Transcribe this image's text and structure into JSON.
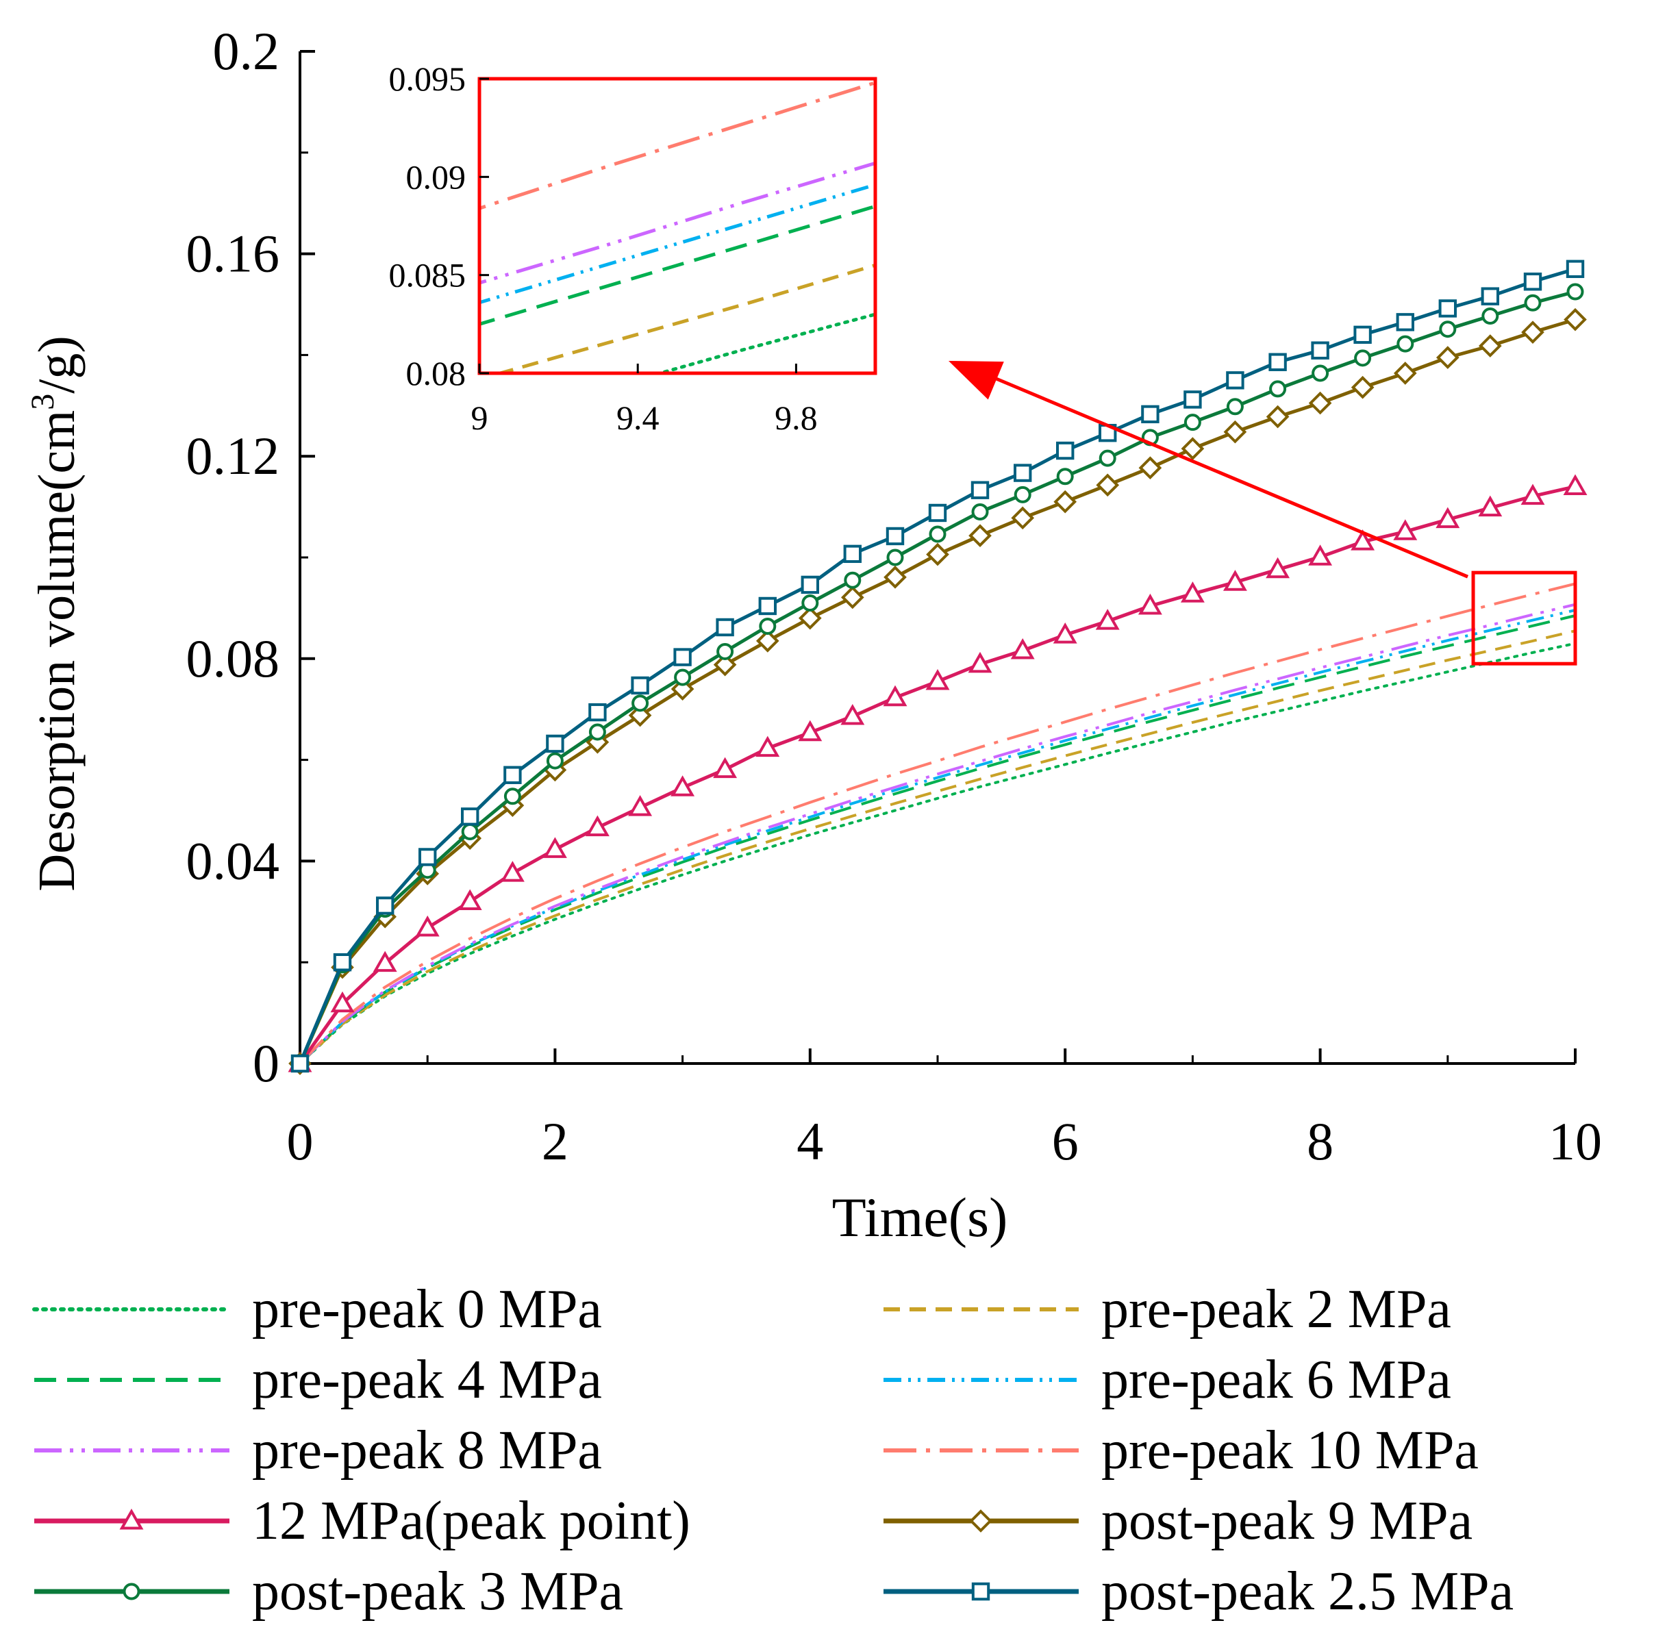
{
  "chart_data": {
    "type": "line",
    "title": "",
    "xlabel": "Time(s)",
    "ylabel": "Desorption volume(cm³/g)",
    "ylabel_parts": {
      "pre": "Desorption volume(cm",
      "sup": "3",
      "post": "/g)"
    },
    "xlim": [
      0,
      10
    ],
    "ylim": [
      0,
      0.2
    ],
    "xticks": [
      0,
      2,
      4,
      6,
      8,
      10
    ],
    "xtick_labels": [
      "0",
      "2",
      "4",
      "6",
      "8",
      "10"
    ],
    "yticks": [
      0,
      0.04,
      0.08,
      0.12,
      0.16,
      0.2
    ],
    "ytick_labels": [
      "0",
      "0.04",
      "0.08",
      "0.12",
      "0.16",
      "0.2"
    ],
    "grid": false,
    "legend_position": "bottom",
    "x": [
      0,
      0.333,
      0.667,
      1.0,
      1.333,
      1.667,
      2.0,
      2.333,
      2.667,
      3.0,
      3.333,
      3.667,
      4.0,
      4.333,
      4.667,
      5.0,
      5.333,
      5.667,
      6.0,
      6.333,
      6.667,
      7.0,
      7.333,
      7.667,
      8.0,
      8.333,
      8.667,
      9.0,
      9.333,
      9.667,
      10.0
    ],
    "series": [
      {
        "name": "pre-peak 0 MPa",
        "color": "#00b050",
        "dash": "dot",
        "marker": "none",
        "values": [
          0,
          0.0077,
          0.0133,
          0.0178,
          0.0217,
          0.0252,
          0.0285,
          0.0316,
          0.0345,
          0.0373,
          0.04,
          0.0426,
          0.0452,
          0.0476,
          0.05,
          0.0524,
          0.0547,
          0.0569,
          0.0591,
          0.0613,
          0.0634,
          0.0655,
          0.0676,
          0.0696,
          0.0716,
          0.0736,
          0.0755,
          0.0774,
          0.0793,
          0.0812,
          0.083
        ]
      },
      {
        "name": "pre-peak 2 MPa",
        "color": "#c9a227",
        "dash": "dash",
        "marker": "none",
        "values": [
          0,
          0.0078,
          0.0135,
          0.0182,
          0.0222,
          0.0259,
          0.0292,
          0.0324,
          0.0354,
          0.0383,
          0.0411,
          0.0438,
          0.0464,
          0.0489,
          0.0514,
          0.0538,
          0.0562,
          0.0585,
          0.0608,
          0.063,
          0.0652,
          0.0674,
          0.0695,
          0.0716,
          0.0737,
          0.0757,
          0.0777,
          0.0797,
          0.0816,
          0.0835,
          0.0855
        ]
      },
      {
        "name": "pre-peak 4 MPa",
        "color": "#00b050",
        "dash": "longdash",
        "marker": "none",
        "values": [
          0,
          0.0081,
          0.0141,
          0.0189,
          0.0231,
          0.0269,
          0.0304,
          0.0337,
          0.0368,
          0.0398,
          0.0427,
          0.0454,
          0.0481,
          0.0507,
          0.0533,
          0.0558,
          0.0583,
          0.0607,
          0.063,
          0.0653,
          0.0676,
          0.0698,
          0.072,
          0.0742,
          0.0763,
          0.0784,
          0.0805,
          0.0825,
          0.0845,
          0.0865,
          0.0885
        ]
      },
      {
        "name": "pre-peak 6 MPa",
        "color": "#00b0f0",
        "dash": "dashdotdot",
        "marker": "none",
        "values": [
          0,
          0.0082,
          0.0142,
          0.0191,
          0.0234,
          0.0272,
          0.0308,
          0.0341,
          0.0373,
          0.0403,
          0.0432,
          0.046,
          0.0487,
          0.0514,
          0.054,
          0.0565,
          0.059,
          0.0614,
          0.0638,
          0.0661,
          0.0684,
          0.0707,
          0.0729,
          0.0751,
          0.0773,
          0.0794,
          0.0815,
          0.0836,
          0.0856,
          0.0876,
          0.0896
        ]
      },
      {
        "name": "pre-peak 8 MPa",
        "color": "#cc66ff",
        "dash": "longdashdotdot",
        "marker": "none",
        "values": [
          0,
          0.0083,
          0.0144,
          0.0193,
          0.0236,
          0.0275,
          0.0311,
          0.0345,
          0.0377,
          0.0408,
          0.0437,
          0.0466,
          0.0493,
          0.052,
          0.0546,
          0.0572,
          0.0597,
          0.0622,
          0.0646,
          0.0669,
          0.0693,
          0.0715,
          0.0738,
          0.076,
          0.0782,
          0.0803,
          0.0825,
          0.0846,
          0.0866,
          0.0887,
          0.0907
        ]
      },
      {
        "name": "pre-peak 10 MPa",
        "color": "#ff7c6e",
        "dash": "longdashdot",
        "marker": "none",
        "values": [
          0,
          0.0087,
          0.0151,
          0.0202,
          0.0247,
          0.0288,
          0.0326,
          0.0361,
          0.0395,
          0.0427,
          0.0458,
          0.0487,
          0.0516,
          0.0544,
          0.0572,
          0.0598,
          0.0625,
          0.065,
          0.0675,
          0.07,
          0.0724,
          0.0748,
          0.0772,
          0.0795,
          0.0818,
          0.084,
          0.0862,
          0.0884,
          0.0906,
          0.0927,
          0.0948
        ]
      },
      {
        "name": "12 MPa(peak point)",
        "color": "#d81b60",
        "dash": "solid",
        "marker": "triangle",
        "values": [
          0,
          0.0118,
          0.0198,
          0.0268,
          0.032,
          0.0376,
          0.0423,
          0.0466,
          0.0506,
          0.0545,
          0.0581,
          0.0623,
          0.0654,
          0.0686,
          0.0723,
          0.0755,
          0.0789,
          0.0816,
          0.0847,
          0.0874,
          0.0904,
          0.0928,
          0.0951,
          0.0976,
          0.1001,
          0.1031,
          0.1051,
          0.1075,
          0.1098,
          0.1121,
          0.114
        ]
      },
      {
        "name": "post-peak 9 MPa",
        "color": "#7f6000",
        "dash": "solid",
        "marker": "diamond",
        "values": [
          0,
          0.019,
          0.029,
          0.0375,
          0.0445,
          0.051,
          0.058,
          0.0635,
          0.0688,
          0.074,
          0.0788,
          0.0835,
          0.088,
          0.0921,
          0.0961,
          0.1006,
          0.1043,
          0.1078,
          0.111,
          0.1143,
          0.1177,
          0.1215,
          0.1248,
          0.1278,
          0.1305,
          0.1336,
          0.1364,
          0.1395,
          0.1418,
          0.1445,
          0.147
        ]
      },
      {
        "name": "post-peak 3 MPa",
        "color": "#0b7a3b",
        "dash": "solid",
        "marker": "circle",
        "values": [
          0,
          0.0195,
          0.0305,
          0.0382,
          0.0458,
          0.0528,
          0.0598,
          0.0655,
          0.0712,
          0.0763,
          0.0814,
          0.0864,
          0.091,
          0.0955,
          0.1,
          0.1046,
          0.109,
          0.1124,
          0.116,
          0.1196,
          0.1237,
          0.1267,
          0.1298,
          0.1333,
          0.1364,
          0.1394,
          0.1422,
          0.1451,
          0.1477,
          0.1503,
          0.1525
        ]
      },
      {
        "name": "post-peak 2.5 MPa",
        "color": "#006080",
        "dash": "solid",
        "marker": "square",
        "values": [
          0,
          0.02,
          0.0312,
          0.0408,
          0.0488,
          0.057,
          0.0632,
          0.0694,
          0.0747,
          0.0803,
          0.0862,
          0.0904,
          0.0946,
          0.1007,
          0.1042,
          0.1088,
          0.1133,
          0.1167,
          0.1211,
          0.1246,
          0.1283,
          0.1312,
          0.135,
          0.1386,
          0.1409,
          0.144,
          0.1465,
          0.1492,
          0.1516,
          0.1545,
          0.157
        ]
      }
    ],
    "inset": {
      "xlim": [
        9,
        10
      ],
      "ylim": [
        0.08,
        0.095
      ],
      "xticks": [
        9,
        9.4,
        9.8
      ],
      "xtick_labels": [
        "9",
        "9.4",
        "9.8"
      ],
      "yticks": [
        0.08,
        0.085,
        0.09,
        0.095
      ],
      "ytick_labels": [
        "0.08",
        "0.085",
        "0.09",
        "0.095"
      ],
      "frame_color": "#ff0000",
      "zoom_region": {
        "x": [
          9.2,
          10.0
        ],
        "y": [
          0.079,
          0.097
        ]
      }
    }
  }
}
